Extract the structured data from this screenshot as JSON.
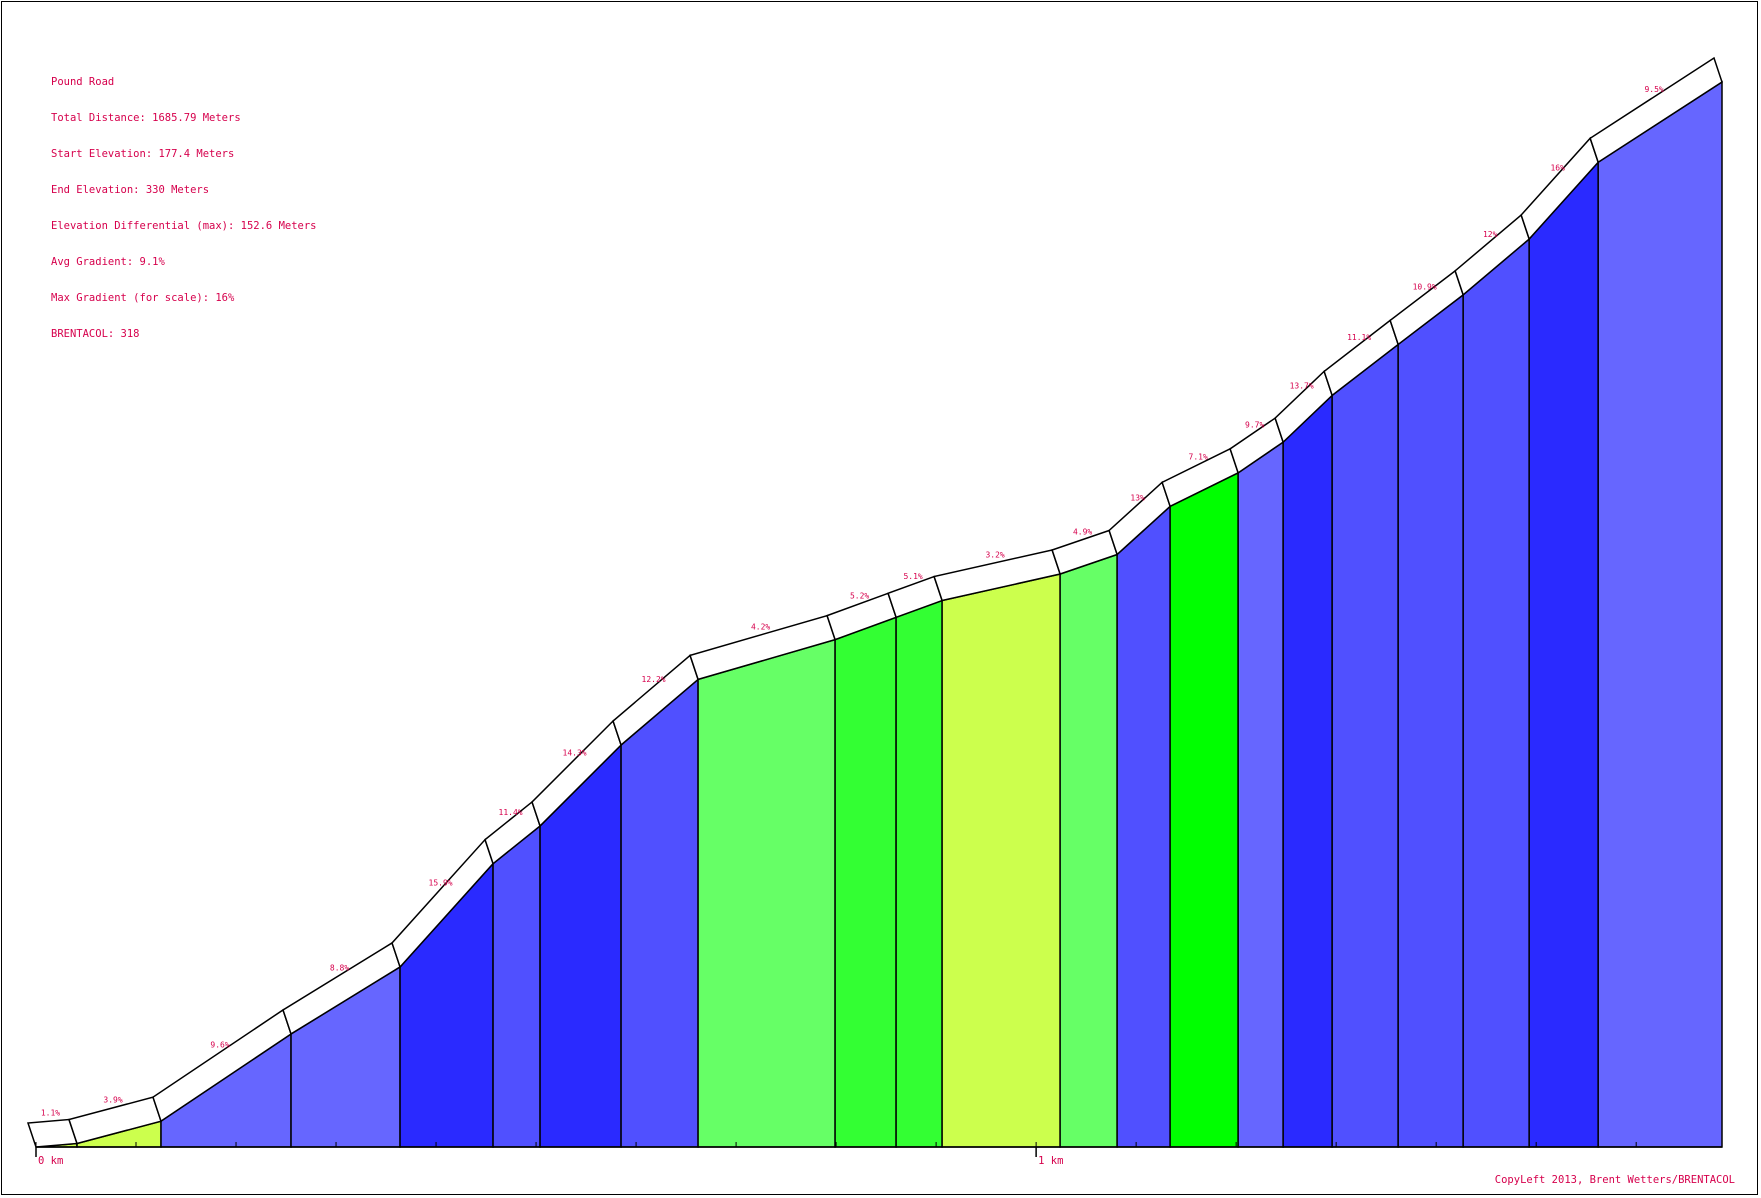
{
  "info": {
    "name": "Pound Road",
    "total_distance": "Total Distance: 1685.79 Meters",
    "start_elevation": "Start Elevation: 177.4 Meters",
    "end_elevation": "End Elevation: 330 Meters",
    "elevation_diff": "Elevation Differential (max): 152.6 Meters",
    "avg_gradient": "Avg Gradient: 9.1%",
    "max_gradient": "Max Gradient (for scale): 16%",
    "brentacol": "BRENTACOL: 318"
  },
  "copyright": "CopyLeft 2013, Brent Wetters/BRENTACOL",
  "chart_data": {
    "type": "area",
    "title": "Pound Road",
    "xlabel": "",
    "ylabel": "",
    "x_unit": "km",
    "xlim": [
      0,
      1.6858
    ],
    "ylim": [
      177.4,
      330
    ],
    "x_ticks": [
      {
        "value": 0,
        "label": "0 km"
      },
      {
        "value": 1,
        "label": "1 km"
      }
    ],
    "segments": [
      {
        "start_km": 0.0,
        "end_km": 0.041,
        "gradient": "1.1%",
        "color": "#ccff4d"
      },
      {
        "start_km": 0.041,
        "end_km": 0.125,
        "gradient": "3.9%",
        "color": "#ccff4d"
      },
      {
        "start_km": 0.125,
        "end_km": 0.255,
        "gradient": "9.6%",
        "color": "#6666ff"
      },
      {
        "start_km": 0.255,
        "end_km": 0.364,
        "gradient": "8.8%",
        "color": "#6666ff"
      },
      {
        "start_km": 0.364,
        "end_km": 0.457,
        "gradient": "15.9%",
        "color": "#2a2aff"
      },
      {
        "start_km": 0.457,
        "end_km": 0.504,
        "gradient": "11.4%",
        "color": "#5050ff"
      },
      {
        "start_km": 0.504,
        "end_km": 0.585,
        "gradient": "14.3%",
        "color": "#2a2aff"
      },
      {
        "start_km": 0.585,
        "end_km": 0.662,
        "gradient": "12.2%",
        "color": "#5050ff"
      },
      {
        "start_km": 0.662,
        "end_km": 0.799,
        "gradient": "4.2%",
        "color": "#66ff66"
      },
      {
        "start_km": 0.799,
        "end_km": 0.86,
        "gradient": "5.2%",
        "color": "#33ff33"
      },
      {
        "start_km": 0.86,
        "end_km": 0.906,
        "gradient": "5.1%",
        "color": "#33ff33"
      },
      {
        "start_km": 0.906,
        "end_km": 1.024,
        "gradient": "3.2%",
        "color": "#ccff4d"
      },
      {
        "start_km": 1.024,
        "end_km": 1.081,
        "gradient": "4.9%",
        "color": "#66ff66"
      },
      {
        "start_km": 1.081,
        "end_km": 1.134,
        "gradient": "13%",
        "color": "#5050ff"
      },
      {
        "start_km": 1.134,
        "end_km": 1.202,
        "gradient": "7.1%",
        "color": "#00ff00"
      },
      {
        "start_km": 1.202,
        "end_km": 1.247,
        "gradient": "9.7%",
        "color": "#6666ff"
      },
      {
        "start_km": 1.247,
        "end_km": 1.296,
        "gradient": "13.7%",
        "color": "#2a2aff"
      },
      {
        "start_km": 1.296,
        "end_km": 1.362,
        "gradient": "11.1%",
        "color": "#5050ff"
      },
      {
        "start_km": 1.362,
        "end_km": 1.427,
        "gradient": "10.9%",
        "color": "#5050ff"
      },
      {
        "start_km": 1.427,
        "end_km": 1.493,
        "gradient": "12%",
        "color": "#5050ff"
      },
      {
        "start_km": 1.493,
        "end_km": 1.562,
        "gradient": "16%",
        "color": "#2a2aff"
      },
      {
        "start_km": 1.562,
        "end_km": 1.6858,
        "gradient": "9.5%",
        "color": "#6666ff"
      }
    ],
    "elevations_m": [
      177.4,
      177.9,
      181.1,
      193.6,
      203.2,
      218.0,
      223.4,
      235.0,
      244.4,
      250.1,
      253.3,
      255.7,
      259.5,
      262.3,
      269.2,
      274.0,
      278.4,
      285.1,
      292.4,
      299.5,
      307.5,
      318.5,
      330.0
    ]
  }
}
